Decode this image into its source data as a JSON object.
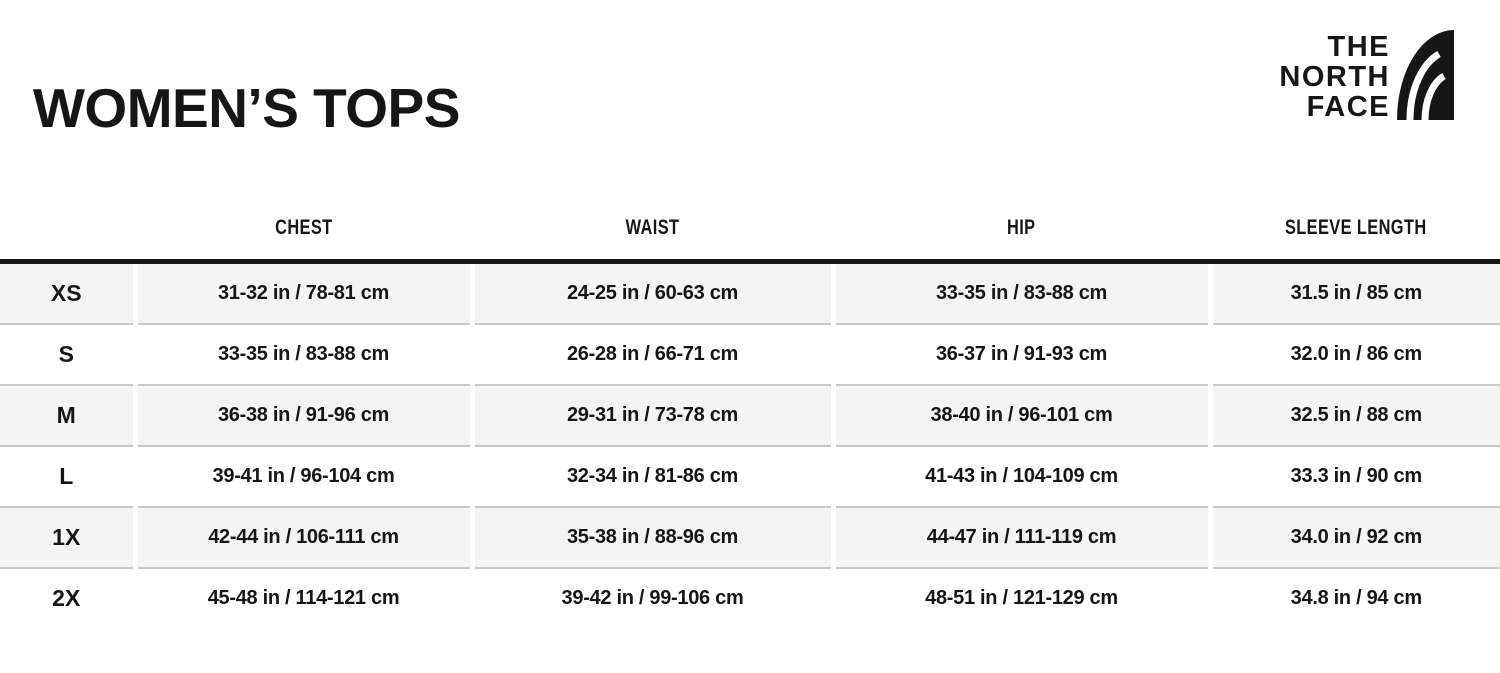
{
  "title": "WOMEN’S TOPS",
  "logo": {
    "alt": "The North Face",
    "lines": [
      "THE",
      "NORTH",
      "FACE"
    ]
  },
  "colors": {
    "background": "#ffffff",
    "text": "#161616",
    "header_rule": "#161616",
    "alt_row_bg": "#f4f4f4",
    "row_divider": "#c9c9c9"
  },
  "chart_data": {
    "type": "table",
    "title": "WOMEN’S TOPS",
    "columns": [
      "",
      "CHEST",
      "WAIST",
      "HIP",
      "SLEEVE LENGTH"
    ],
    "rows": [
      [
        "XS",
        "31-32 in / 78-81 cm",
        "24-25 in / 60-63 cm",
        "33-35 in / 83-88 cm",
        "31.5 in / 85 cm"
      ],
      [
        "S",
        "33-35 in / 83-88 cm",
        "26-28 in / 66-71 cm",
        "36-37 in / 91-93 cm",
        "32.0 in / 86 cm"
      ],
      [
        "M",
        "36-38 in / 91-96 cm",
        "29-31 in / 73-78 cm",
        "38-40 in / 96-101 cm",
        "32.5 in / 88 cm"
      ],
      [
        "L",
        "39-41 in / 96-104 cm",
        "32-34 in / 81-86 cm",
        "41-43 in / 104-109 cm",
        "33.3 in / 90 cm"
      ],
      [
        "1X",
        "42-44 in / 106-111 cm",
        "35-38 in / 88-96 cm",
        "44-47 in / 111-119 cm",
        "34.0 in / 92 cm"
      ],
      [
        "2X",
        "45-48 in / 114-121 cm",
        "39-42 in / 99-106 cm",
        "48-51 in / 121-129 cm",
        "34.8 in / 94 cm"
      ]
    ]
  }
}
